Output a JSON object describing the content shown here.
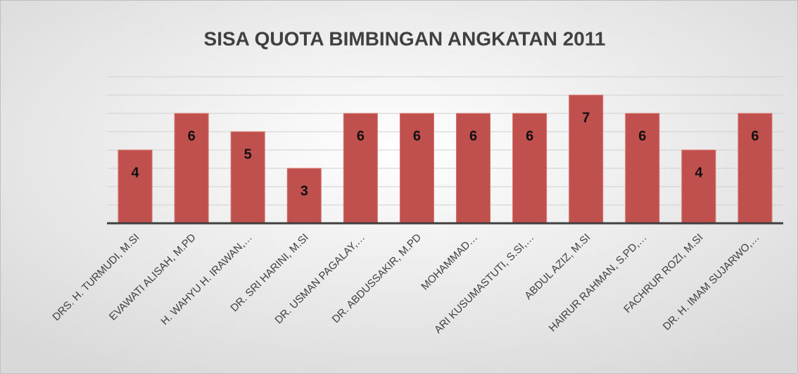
{
  "chart_data": {
    "type": "bar",
    "title": "SISA QUOTA BIMBINGAN ANGKATAN 2011",
    "categories": [
      "DRS. H. TURMUDI, M.SI",
      "EVAWATI ALISAH, M.PD",
      "H. WAHYU H. IRAWAN,…",
      "DR. SRI HARINI, M.SI",
      "DR. USMAN PAGALAY,…",
      "DR. ABDUSSAKIR, M.PD",
      "MOHAMMAD…",
      "ARI KUSUMASTUTI, S.SI,…",
      "ABDUL AZIZ, M.SI",
      "HAIRUR RAHMAN, S.PD,…",
      "FACHRUR ROZI, M.SI",
      "DR. H. IMAM SUJARWO,…"
    ],
    "values": [
      4,
      6,
      5,
      3,
      6,
      6,
      6,
      6,
      7,
      6,
      4,
      6
    ],
    "color": "#c0504d",
    "ylim": [
      0,
      8
    ],
    "yticks": [
      0,
      1,
      2,
      3,
      4,
      5,
      6,
      7,
      8
    ],
    "grid": true
  }
}
